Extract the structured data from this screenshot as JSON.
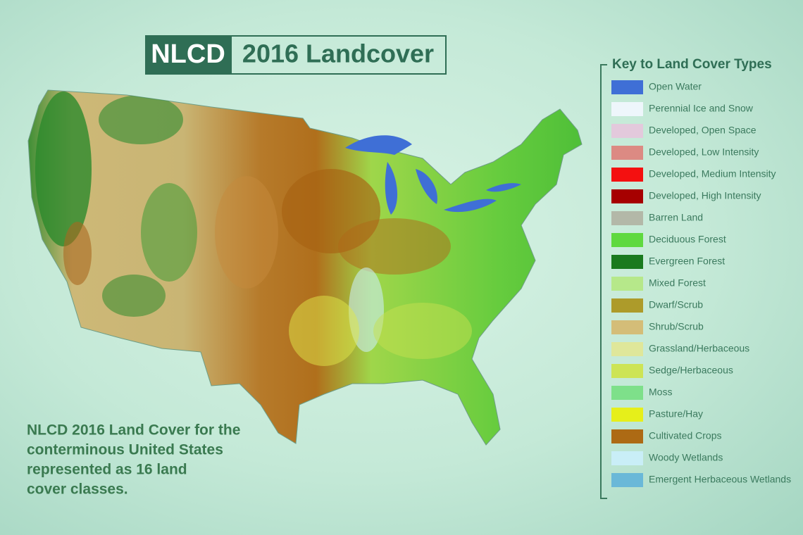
{
  "title": {
    "badge": "NLCD",
    "text": "2016 Landcover"
  },
  "legend": {
    "title": "Key to Land Cover Types",
    "items": [
      {
        "label": "Open Water",
        "color": "#3f6fd6"
      },
      {
        "label": "Perennial Ice and Snow",
        "color": "#eef6fb"
      },
      {
        "label": "Developed, Open Space",
        "color": "#e3c9dc"
      },
      {
        "label": "Developed, Low Intensity",
        "color": "#dc8a83"
      },
      {
        "label": "Developed, Medium Intensity",
        "color": "#f41010"
      },
      {
        "label": "Developed, High Intensity",
        "color": "#a60000"
      },
      {
        "label": "Barren Land",
        "color": "#b3b8a8"
      },
      {
        "label": "Deciduous Forest",
        "color": "#5fd93f"
      },
      {
        "label": "Evergreen Forest",
        "color": "#1a7a1e"
      },
      {
        "label": "Mixed Forest",
        "color": "#b6e88a"
      },
      {
        "label": "Dwarf/Scrub",
        "color": "#ad9b2a"
      },
      {
        "label": "Shrub/Scrub",
        "color": "#d4bd78"
      },
      {
        "label": "Grassland/Herbaceous",
        "color": "#dfe79a"
      },
      {
        "label": "Sedge/Herbaceous",
        "color": "#cde455"
      },
      {
        "label": "Moss",
        "color": "#7ee08a"
      },
      {
        "label": "Pasture/Hay",
        "color": "#e6ef1a"
      },
      {
        "label": "Cultivated Crops",
        "color": "#ad6a14"
      },
      {
        "label": "Woody Wetlands",
        "color": "#c9eef7"
      },
      {
        "label": "Emergent Herbaceous Wetlands",
        "color": "#6ab8d8"
      }
    ]
  },
  "caption": [
    "NLCD 2016 Land Cover for the",
    "conterminous United States",
    "represented as 16 land",
    "cover classes."
  ]
}
